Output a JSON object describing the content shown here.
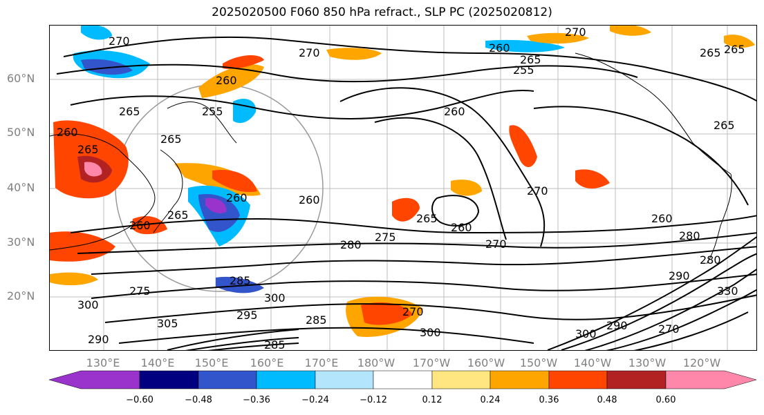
{
  "title": "2025020500 F060 850 hPa refract., SLP PC (2025020812)",
  "lat_labels": [
    "60°N",
    "50°N",
    "40°N",
    "30°N",
    "20°N"
  ],
  "lon_labels": [
    "130°E",
    "140°E",
    "150°E",
    "160°E",
    "170°E",
    "180°W",
    "170°W",
    "160°W",
    "150°W",
    "140°W",
    "130°W",
    "120°W"
  ],
  "contour_labels": [
    "270",
    "270",
    "270",
    "260",
    "265",
    "255",
    "260",
    "265",
    "260",
    "255",
    "265",
    "265",
    "260",
    "260",
    "265",
    "260",
    "260",
    "270",
    "265",
    "260",
    "280",
    "275",
    "265",
    "270",
    "260",
    "280",
    "275",
    "285",
    "300",
    "295",
    "305",
    "300",
    "290",
    "285",
    "270",
    "300",
    "285",
    "290",
    "300",
    "270",
    "265",
    "265",
    "280",
    "330",
    "290"
  ],
  "colorbar": {
    "ticks": [
      "−0.60",
      "−0.48",
      "−0.36",
      "−0.24",
      "−0.12",
      "0.12",
      "0.24",
      "0.36",
      "0.48",
      "0.60"
    ],
    "colors": [
      "#9933CC",
      "#000080",
      "#3355CC",
      "#00BBFF",
      "#B3E5FC",
      "#FFFFFF",
      "#FFE680",
      "#FFA500",
      "#FF4500",
      "#B22222",
      "#FF88AA"
    ]
  }
}
